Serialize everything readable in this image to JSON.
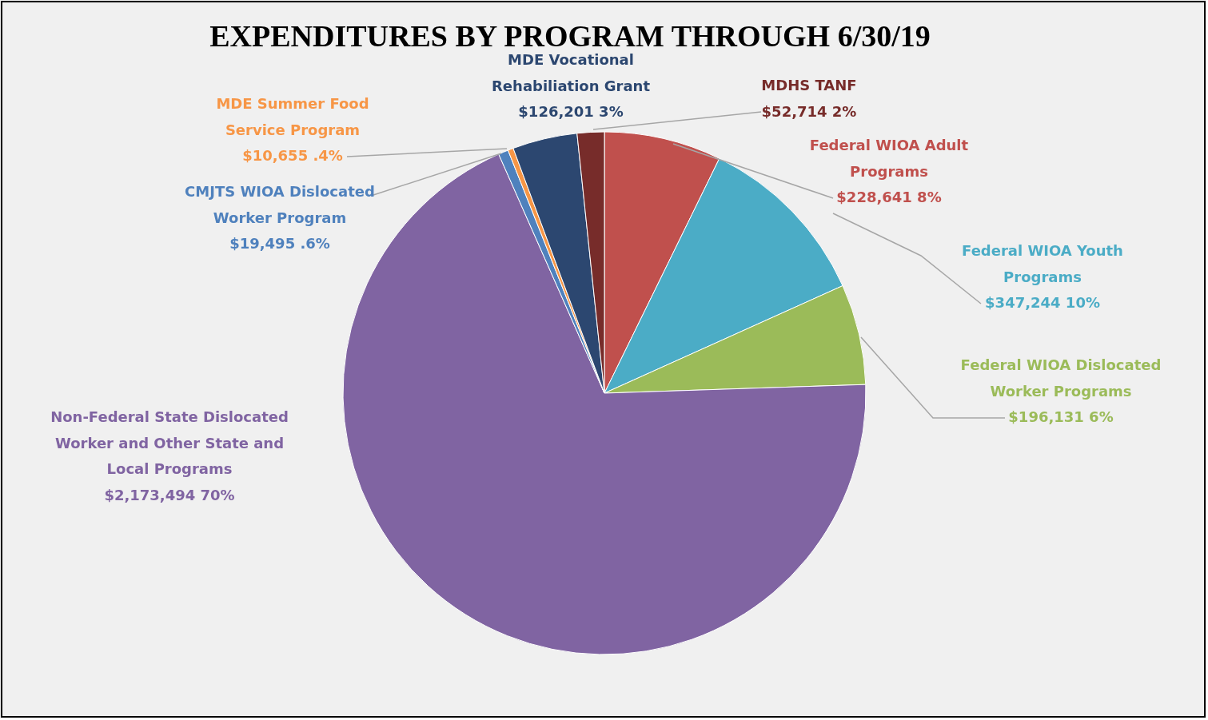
{
  "chart_data": {
    "type": "pie",
    "title": "EXPENDITURES BY PROGRAM THROUGH 6/30/19",
    "categories": [
      "Federal WIOA Adult Programs",
      "Federal WIOA Youth Programs",
      "Federal WIOA Dislocated Worker Programs",
      "Non-Federal State Dislocated Worker and Other State and Local Programs",
      "CMJTS WIOA Dislocated Worker Program",
      "MDE Summer Food Service Program",
      "MDE Vocational Rehabiliation Grant",
      "MDHS TANF"
    ],
    "values": [
      228641,
      347244,
      196131,
      2173494,
      19495,
      10655,
      126201,
      52714
    ],
    "value_labels": [
      "$228,641 8%",
      "$347,244 10%",
      "$196,131 6%",
      "$2,173,494 70%",
      "$19,495 .6%",
      "$10,655 .4%",
      "$126,201 3%",
      "$52,714 2%"
    ],
    "colors": [
      "#c0504d",
      "#4bacc6",
      "#9bbb59",
      "#8064a2",
      "#4f81bd",
      "#f79646",
      "#2c4770",
      "#772c2a"
    ]
  }
}
